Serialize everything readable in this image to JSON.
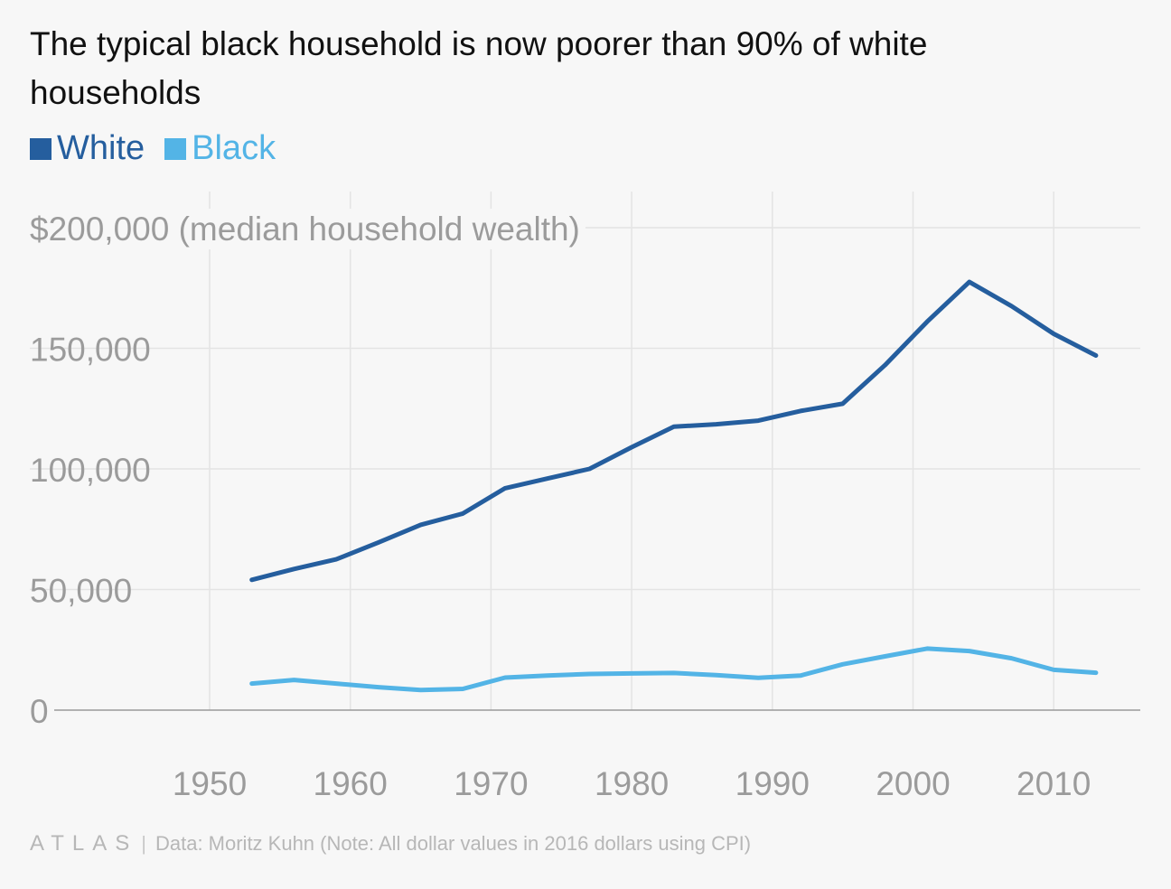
{
  "title": "The typical black household is now poorer than 90% of white households",
  "legend": [
    {
      "label": "White",
      "color": "#255e9e"
    },
    {
      "label": "Black",
      "color": "#53b4e6"
    }
  ],
  "footer": {
    "brand": "ATLAS",
    "separator": "|",
    "source": "Data:  Moritz Kuhn (Note: All dollar values in 2016 dollars using CPI)"
  },
  "chart_data": {
    "type": "line",
    "title": "The typical black household is now poorer than 90% of white households",
    "ylabel": "$200,000 (median household wealth)",
    "xlabel": "",
    "xlim": [
      1940,
      2016
    ],
    "ylim": [
      0,
      200000
    ],
    "x_ticks": [
      1950,
      1960,
      1970,
      1980,
      1990,
      2000,
      2010
    ],
    "x_tick_labels": [
      "1950",
      "1960",
      "1970",
      "1980",
      "1990",
      "2000",
      "2010"
    ],
    "y_ticks": [
      0,
      50000,
      100000,
      150000,
      200000
    ],
    "y_tick_labels": [
      "0",
      "50,000",
      "100,000",
      "150,000",
      "$200,000 (median household wealth)"
    ],
    "grid": true,
    "x": [
      1953,
      1956,
      1959,
      1962,
      1965,
      1968,
      1971,
      1974,
      1977,
      1980,
      1983,
      1986,
      1989,
      1992,
      1995,
      1998,
      2001,
      2004,
      2007,
      2010,
      2013
    ],
    "series": [
      {
        "name": "White",
        "color": "#255e9e",
        "values": [
          54000,
          58500,
          62500,
          69500,
          76800,
          81500,
          92000,
          96000,
          100000,
          109000,
          117500,
          118500,
          120000,
          124000,
          127000,
          143000,
          161000,
          177500,
          167500,
          156000,
          147000
        ]
      },
      {
        "name": "Black",
        "color": "#53b4e6",
        "values": [
          11000,
          12500,
          11000,
          9500,
          8300,
          8800,
          13500,
          14300,
          15000,
          15200,
          15400,
          14500,
          13400,
          14300,
          19000,
          22300,
          25500,
          24500,
          21500,
          16700,
          15500
        ]
      }
    ]
  }
}
